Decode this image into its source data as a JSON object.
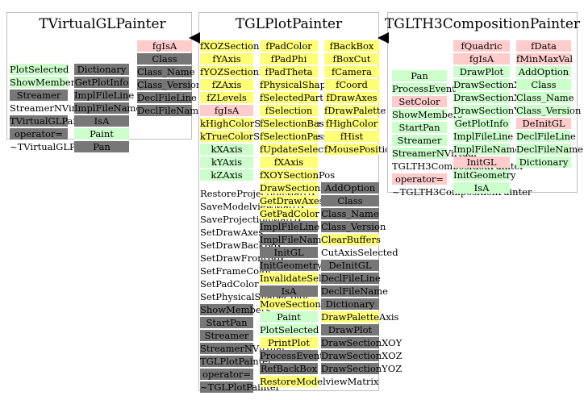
{
  "colors": {
    "white": "#ffffff",
    "green": "#ccffcc",
    "gray": "#777777",
    "yellow": "#ffff77",
    "pink": "#ffcccc",
    "border": "#bfbfbf"
  },
  "classes": [
    {
      "id": "vgl",
      "title": "TVirtualGLPainter",
      "columns": [
        [
          {
            "t": "",
            "c": "white"
          },
          {
            "t": "PlotSelected",
            "c": "green"
          },
          {
            "t": "ShowMembers",
            "c": "green"
          },
          {
            "t": "Streamer",
            "c": "gray"
          },
          {
            "t": "StreamerNVirtual",
            "c": "white"
          },
          {
            "t": "TVirtualGLPainter",
            "c": "gray"
          },
          {
            "t": "operator=",
            "c": "gray"
          },
          {
            "t": "~TVirtualGLPainter",
            "c": "white"
          }
        ],
        [
          {
            "t": "",
            "c": "white"
          },
          {
            "t": "Dictionary",
            "c": "gray"
          },
          {
            "t": "GetPlotInfo",
            "c": "gray"
          },
          {
            "t": "ImplFileLine",
            "c": "gray"
          },
          {
            "t": "ImplFileName",
            "c": "gray"
          },
          {
            "t": "IsA",
            "c": "gray"
          },
          {
            "t": "Paint",
            "c": "green"
          },
          {
            "t": "Pan",
            "c": "gray"
          }
        ],
        [
          {
            "t": "fgIsA",
            "c": "pink"
          },
          {
            "t": "Class",
            "c": "gray"
          },
          {
            "t": "Class_Name",
            "c": "gray"
          },
          {
            "t": "Class_Version",
            "c": "gray"
          },
          {
            "t": "DeclFileLine",
            "c": "gray"
          },
          {
            "t": "DeclFileName",
            "c": "gray"
          }
        ]
      ]
    },
    {
      "id": "plot",
      "title": "TGLPlotPainter",
      "columns": [
        [
          {
            "t": "fXOZSectionPos",
            "c": "yellow"
          },
          {
            "t": "fYAxis",
            "c": "yellow"
          },
          {
            "t": "fYOZSectionPos",
            "c": "yellow"
          },
          {
            "t": "fZAxis",
            "c": "yellow"
          },
          {
            "t": "fZLevels",
            "c": "yellow"
          },
          {
            "t": "fgIsA",
            "c": "pink"
          },
          {
            "t": "kHighColorSelectionBase",
            "c": "yellow"
          },
          {
            "t": "kTrueColorSelectionBase",
            "c": "yellow"
          },
          {
            "t": "kXAxis",
            "c": "green"
          },
          {
            "t": "kYAxis",
            "c": "green"
          },
          {
            "t": "kZAxis",
            "c": "green"
          }
        ],
        [
          {
            "t": "fPadColor",
            "c": "yellow"
          },
          {
            "t": "fPadPhi",
            "c": "yellow"
          },
          {
            "t": "fPadTheta",
            "c": "yellow"
          },
          {
            "t": "fPhysicalShapeColor",
            "c": "yellow"
          },
          {
            "t": "fSelectedPart",
            "c": "yellow"
          },
          {
            "t": "fSelection",
            "c": "yellow"
          },
          {
            "t": "fSelectionBase",
            "c": "yellow"
          },
          {
            "t": "fSelectionPass",
            "c": "yellow"
          },
          {
            "t": "fUpdateSelection",
            "c": "yellow"
          },
          {
            "t": "fXAxis",
            "c": "yellow"
          },
          {
            "t": "fXOYSectionPos",
            "c": "yellow"
          }
        ],
        [
          {
            "t": "fBackBox",
            "c": "yellow"
          },
          {
            "t": "fBoxCut",
            "c": "yellow"
          },
          {
            "t": "fCamera",
            "c": "yellow"
          },
          {
            "t": "fCoord",
            "c": "yellow"
          },
          {
            "t": "fDrawAxes",
            "c": "yellow"
          },
          {
            "t": "fDrawPalette",
            "c": "yellow"
          },
          {
            "t": "fHighColor",
            "c": "yellow"
          },
          {
            "t": "fHist",
            "c": "yellow"
          },
          {
            "t": "fMousePosition",
            "c": "yellow"
          }
        ],
        [
          {
            "t": "RestoreProjectionMatrix",
            "c": "white"
          },
          {
            "t": "SaveModelviewMatrix",
            "c": "white"
          },
          {
            "t": "SaveProjectionMatrix",
            "c": "white"
          },
          {
            "t": "SetDrawAxes",
            "c": "white"
          },
          {
            "t": "SetDrawBackBox",
            "c": "white"
          },
          {
            "t": "SetDrawFrontBox",
            "c": "white"
          },
          {
            "t": "SetFrameColor",
            "c": "white"
          },
          {
            "t": "SetPadColor",
            "c": "white"
          },
          {
            "t": "SetPhysicalShapeColor",
            "c": "white"
          },
          {
            "t": "ShowMembers",
            "c": "gray"
          },
          {
            "t": "StartPan",
            "c": "gray"
          },
          {
            "t": "Streamer",
            "c": "gray"
          },
          {
            "t": "StreamerNVirtual",
            "c": "gray"
          },
          {
            "t": "TGLPlotPainter",
            "c": "gray"
          },
          {
            "t": "operator=",
            "c": "gray"
          },
          {
            "t": "~TGLPlotPainter",
            "c": "gray"
          }
        ],
        [
          {
            "t": "DrawSections",
            "c": "yellow"
          },
          {
            "t": "GetDrawAxes",
            "c": "yellow"
          },
          {
            "t": "GetPadColor",
            "c": "yellow"
          },
          {
            "t": "ImplFileLine",
            "c": "gray"
          },
          {
            "t": "ImplFileName",
            "c": "gray"
          },
          {
            "t": "InitGL",
            "c": "gray"
          },
          {
            "t": "InitGeometry",
            "c": "gray"
          },
          {
            "t": "InvalidateSelection",
            "c": "yellow"
          },
          {
            "t": "IsA",
            "c": "gray"
          },
          {
            "t": "MoveSection",
            "c": "yellow"
          },
          {
            "t": "Paint",
            "c": "green"
          },
          {
            "t": "PlotSelected",
            "c": "green"
          },
          {
            "t": "PrintPlot",
            "c": "yellow"
          },
          {
            "t": "ProcessEvent",
            "c": "gray"
          },
          {
            "t": "RefBackBox",
            "c": "gray"
          },
          {
            "t": "RestoreModelviewMatrix",
            "c": "yellow"
          }
        ],
        [
          {
            "t": "AddOption",
            "c": "gray"
          },
          {
            "t": "Class",
            "c": "gray"
          },
          {
            "t": "Class_Name",
            "c": "gray"
          },
          {
            "t": "Class_Version",
            "c": "gray"
          },
          {
            "t": "ClearBuffers",
            "c": "yellow"
          },
          {
            "t": "CutAxisSelected",
            "c": "white"
          },
          {
            "t": "DeInitGL",
            "c": "gray"
          },
          {
            "t": "DeclFileLine",
            "c": "gray"
          },
          {
            "t": "DeclFileName",
            "c": "gray"
          },
          {
            "t": "Dictionary",
            "c": "gray"
          },
          {
            "t": "DrawPaletteAxis",
            "c": "yellow"
          },
          {
            "t": "DrawPlot",
            "c": "gray"
          },
          {
            "t": "DrawSectionXOY",
            "c": "gray"
          },
          {
            "t": "DrawSectionXOZ",
            "c": "gray"
          },
          {
            "t": "DrawSectionYOZ",
            "c": "gray"
          }
        ]
      ]
    },
    {
      "id": "th3",
      "title": "TGLTH3CompositionPainter",
      "columns": [
        [
          {
            "t": "",
            "c": "white"
          },
          {
            "t": "",
            "c": "white"
          },
          {
            "t": "Pan",
            "c": "green"
          },
          {
            "t": "ProcessEvent",
            "c": "green"
          },
          {
            "t": "SetColor",
            "c": "pink"
          },
          {
            "t": "ShowMembers",
            "c": "green"
          },
          {
            "t": "StartPan",
            "c": "green"
          },
          {
            "t": "Streamer",
            "c": "green"
          },
          {
            "t": "StreamerNVirtual",
            "c": "green"
          },
          {
            "t": "TGLTH3CompositionPainter",
            "c": "white"
          },
          {
            "t": "operator=",
            "c": "pink"
          },
          {
            "t": "~TGLTH3CompositionPainter",
            "c": "white"
          }
        ],
        [
          {
            "t": "fQuadric",
            "c": "pink"
          },
          {
            "t": "fgIsA",
            "c": "pink"
          },
          {
            "t": "DrawPlot",
            "c": "green"
          },
          {
            "t": "DrawSectionXOY",
            "c": "green"
          },
          {
            "t": "DrawSectionXOZ",
            "c": "green"
          },
          {
            "t": "DrawSectionYOZ",
            "c": "green"
          },
          {
            "t": "GetPlotInfo",
            "c": "green"
          },
          {
            "t": "ImplFileLine",
            "c": "green"
          },
          {
            "t": "ImplFileName",
            "c": "green"
          },
          {
            "t": "InitGL",
            "c": "pink"
          },
          {
            "t": "InitGeometry",
            "c": "green"
          },
          {
            "t": "IsA",
            "c": "green"
          }
        ],
        [
          {
            "t": "fData",
            "c": "pink"
          },
          {
            "t": "fMinMaxVal",
            "c": "pink"
          },
          {
            "t": "AddOption",
            "c": "green"
          },
          {
            "t": "Class",
            "c": "green"
          },
          {
            "t": "Class_Name",
            "c": "green"
          },
          {
            "t": "Class_Version",
            "c": "green"
          },
          {
            "t": "DeInitGL",
            "c": "pink"
          },
          {
            "t": "DeclFileLine",
            "c": "green"
          },
          {
            "t": "DeclFileName",
            "c": "green"
          },
          {
            "t": "Dictionary",
            "c": "green"
          }
        ]
      ]
    }
  ]
}
